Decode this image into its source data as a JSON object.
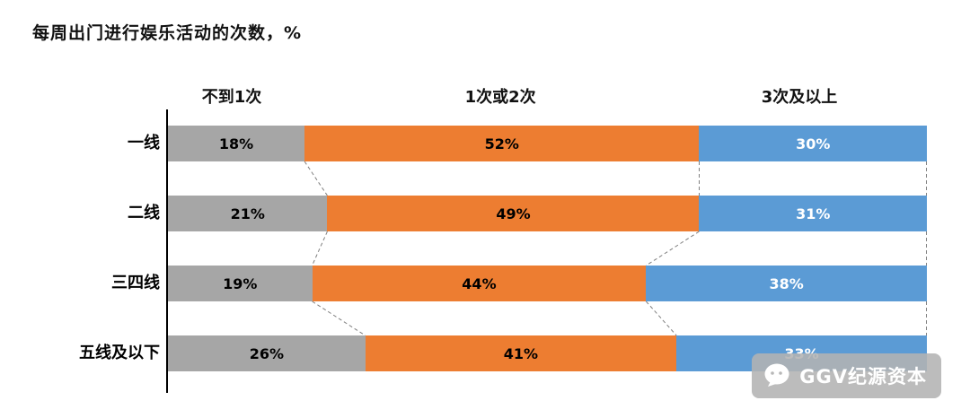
{
  "title": "每周出门进行娱乐活动的次数，%",
  "chart_data": {
    "type": "bar",
    "orientation": "horizontal-stacked-100",
    "categories": [
      "一线",
      "二线",
      "三四线",
      "五线及以下"
    ],
    "series": [
      {
        "name": "不到1次",
        "color": "#a6a6a6",
        "label_color": "#000000",
        "values": [
          18,
          21,
          19,
          26
        ]
      },
      {
        "name": "1次或2次",
        "color": "#ed7d31",
        "label_color": "#000000",
        "values": [
          52,
          49,
          44,
          41
        ]
      },
      {
        "name": "3次及以上",
        "color": "#5b9bd5",
        "label_color": "#ffffff",
        "values": [
          30,
          31,
          38,
          33
        ]
      }
    ],
    "value_suffix": "%",
    "xlim": [
      0,
      100
    ],
    "grid": false,
    "legend_position": "top-as-column-headers",
    "connector_lines": "dashed-between-rows"
  },
  "watermark": {
    "text": "GGV纪源资本",
    "icon": "wechat-chat-bubble-icon"
  }
}
